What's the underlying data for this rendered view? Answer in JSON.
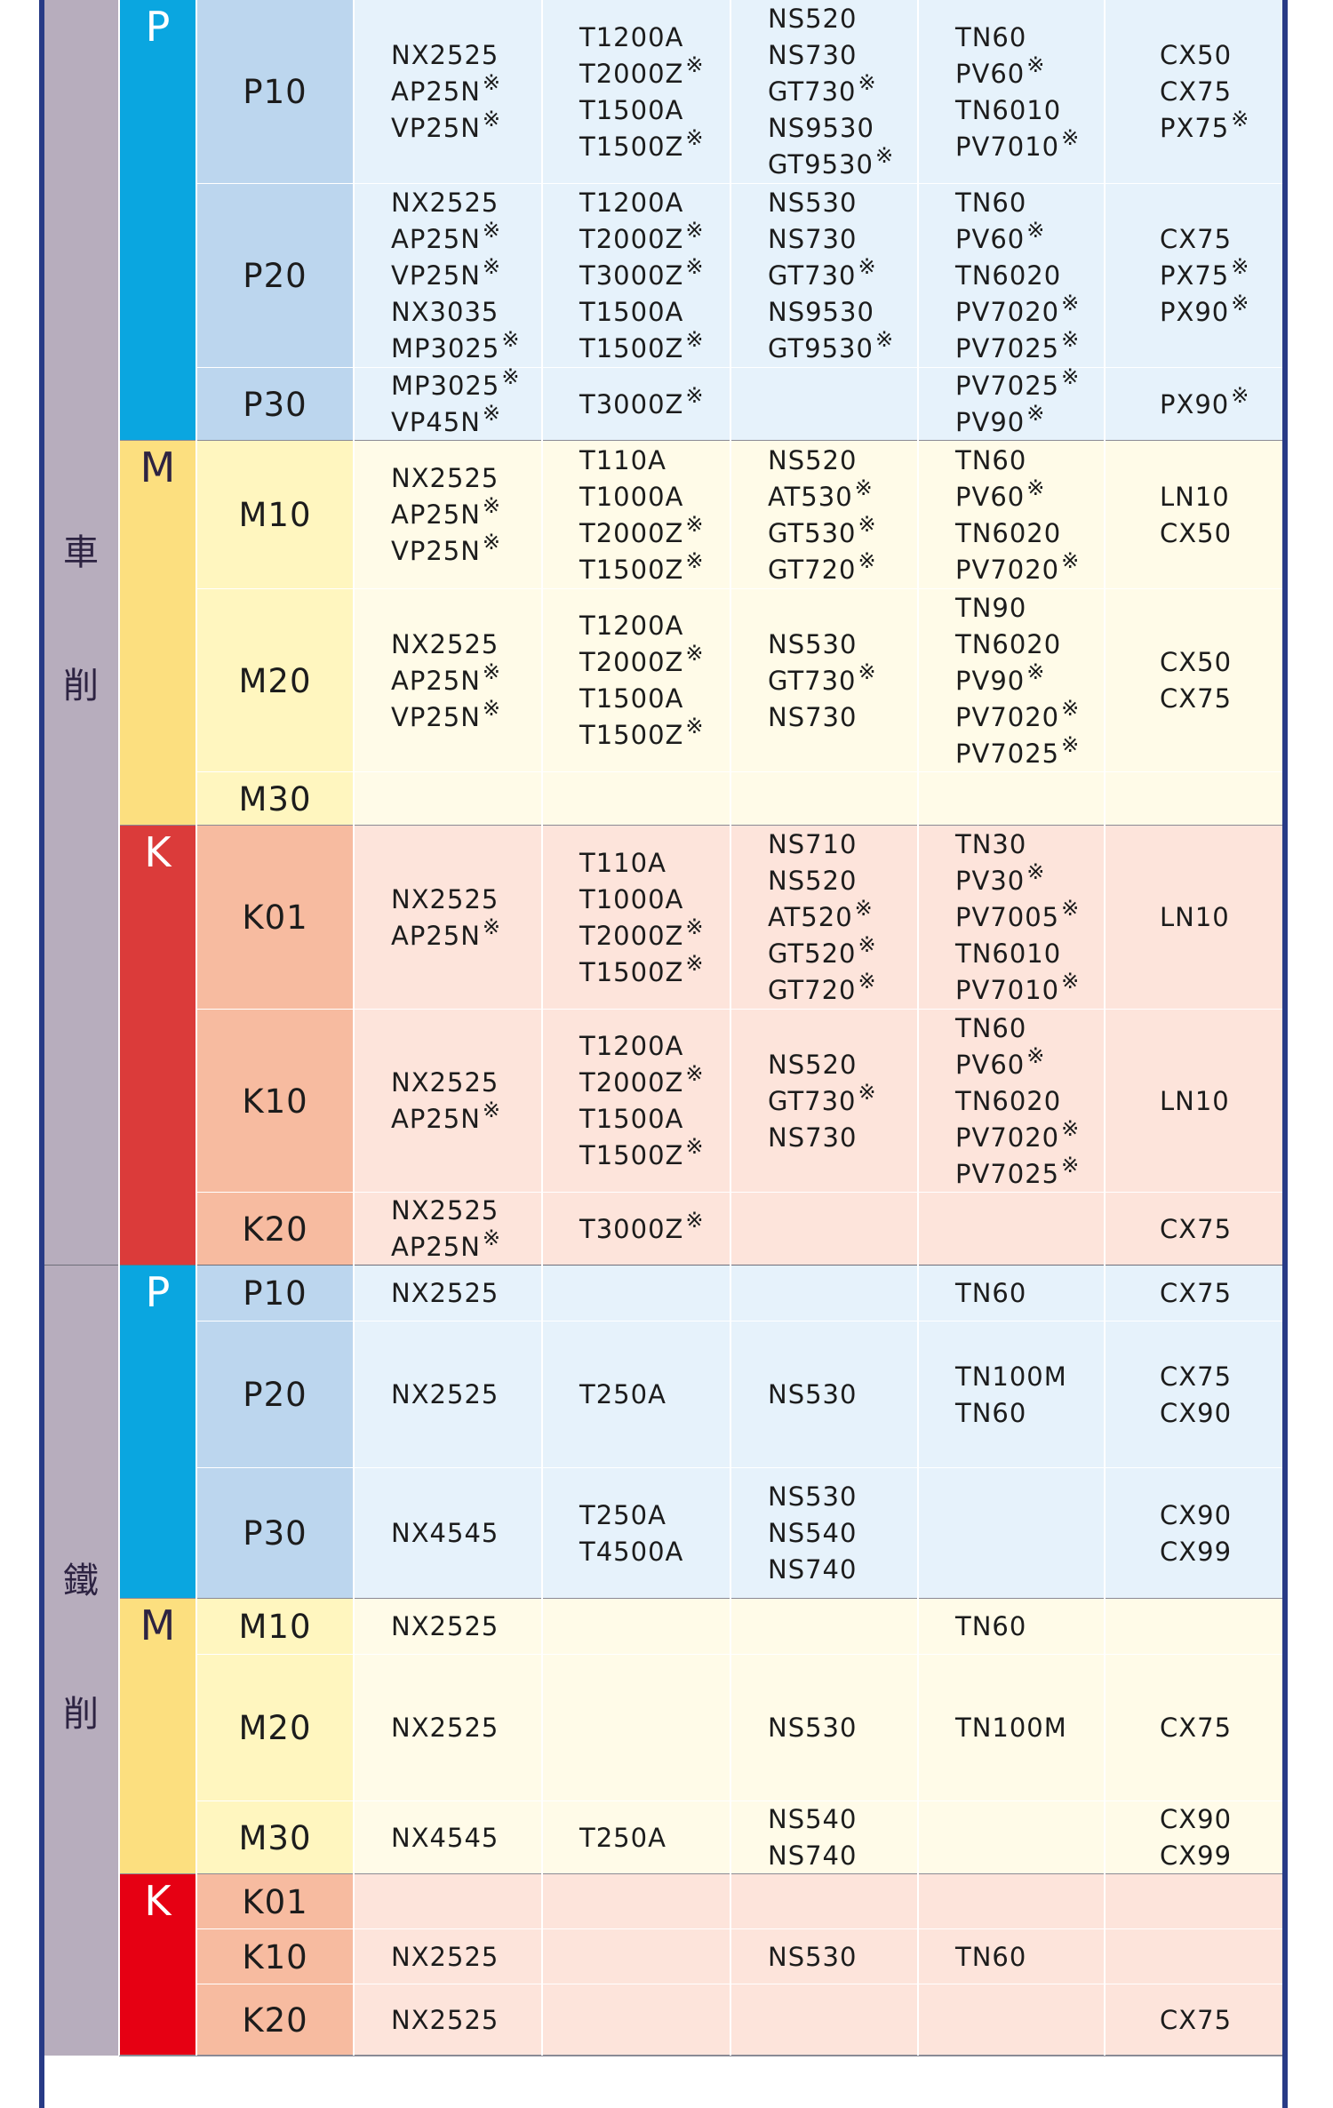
{
  "colors": {
    "frame": "#283b86",
    "operation_bg": "#b7adbd",
    "P": {
      "iso": "#0aa6e0",
      "grade": "#bcd6ee",
      "cell": "#e6f2fb"
    },
    "M": {
      "iso": "#fcdf7f",
      "grade": "#fff6bf",
      "cell": "#fffbe8"
    },
    "K_turning": {
      "iso": "#db3b3a",
      "grade": "#f7bba0",
      "cell": "#fde4db"
    },
    "K_milling": {
      "iso": "#e60013",
      "grade": "#f7bba0",
      "cell": "#fde4db"
    }
  },
  "note_mark": "※",
  "sections": [
    {
      "name": "turning",
      "label_chars": [
        "車",
        "削"
      ],
      "groups": [
        {
          "iso": "P",
          "theme": "P",
          "rows": [
            {
              "grade": "P10",
              "cells": [
                [
                  {
                    "t": "NX2525"
                  },
                  {
                    "t": "AP25N",
                    "n": true
                  },
                  {
                    "t": "VP25N",
                    "n": true
                  }
                ],
                [
                  {
                    "t": "T1200A"
                  },
                  {
                    "t": "T2000Z",
                    "n": true
                  },
                  {
                    "t": "T1500A"
                  },
                  {
                    "t": "T1500Z",
                    "n": true
                  }
                ],
                [
                  {
                    "t": "NS520"
                  },
                  {
                    "t": "NS730"
                  },
                  {
                    "t": "GT730",
                    "n": true
                  },
                  {
                    "t": "NS9530"
                  },
                  {
                    "t": "GT9530",
                    "n": true
                  }
                ],
                [
                  {
                    "t": "TN60"
                  },
                  {
                    "t": "PV60",
                    "n": true
                  },
                  {
                    "t": "TN6010"
                  },
                  {
                    "t": "PV7010",
                    "n": true
                  }
                ],
                [
                  {
                    "t": "CX50"
                  },
                  {
                    "t": "CX75"
                  },
                  {
                    "t": "PX75",
                    "n": true
                  }
                ]
              ]
            },
            {
              "grade": "P20",
              "cells": [
                [
                  {
                    "t": "NX2525"
                  },
                  {
                    "t": "AP25N",
                    "n": true
                  },
                  {
                    "t": "VP25N",
                    "n": true
                  },
                  {
                    "t": "NX3035"
                  },
                  {
                    "t": "MP3025",
                    "n": true
                  }
                ],
                [
                  {
                    "t": "T1200A"
                  },
                  {
                    "t": "T2000Z",
                    "n": true
                  },
                  {
                    "t": "T3000Z",
                    "n": true
                  },
                  {
                    "t": "T1500A"
                  },
                  {
                    "t": "T1500Z",
                    "n": true
                  }
                ],
                [
                  {
                    "t": "NS530"
                  },
                  {
                    "t": "NS730"
                  },
                  {
                    "t": "GT730",
                    "n": true
                  },
                  {
                    "t": "NS9530"
                  },
                  {
                    "t": "GT9530",
                    "n": true
                  }
                ],
                [
                  {
                    "t": "TN60"
                  },
                  {
                    "t": "PV60",
                    "n": true
                  },
                  {
                    "t": "TN6020"
                  },
                  {
                    "t": "PV7020",
                    "n": true
                  },
                  {
                    "t": "PV7025",
                    "n": true
                  }
                ],
                [
                  {
                    "t": "CX75"
                  },
                  {
                    "t": "PX75",
                    "n": true
                  },
                  {
                    "t": "PX90",
                    "n": true
                  }
                ]
              ]
            },
            {
              "grade": "P30",
              "cells": [
                [
                  {
                    "t": "MP3025",
                    "n": true
                  },
                  {
                    "t": "VP45N",
                    "n": true
                  }
                ],
                [
                  {
                    "t": "T3000Z",
                    "n": true
                  }
                ],
                [],
                [
                  {
                    "t": "PV7025",
                    "n": true
                  },
                  {
                    "t": "PV90",
                    "n": true
                  }
                ],
                [
                  {
                    "t": "PX90",
                    "n": true
                  }
                ]
              ]
            }
          ]
        },
        {
          "iso": "M",
          "theme": "M",
          "rows": [
            {
              "grade": "M10",
              "cells": [
                [
                  {
                    "t": "NX2525"
                  },
                  {
                    "t": "AP25N",
                    "n": true
                  },
                  {
                    "t": "VP25N",
                    "n": true
                  }
                ],
                [
                  {
                    "t": "T110A"
                  },
                  {
                    "t": "T1000A"
                  },
                  {
                    "t": "T2000Z",
                    "n": true
                  },
                  {
                    "t": "T1500Z",
                    "n": true
                  }
                ],
                [
                  {
                    "t": "NS520"
                  },
                  {
                    "t": "AT530",
                    "n": true
                  },
                  {
                    "t": "GT530",
                    "n": true
                  },
                  {
                    "t": "GT720",
                    "n": true
                  }
                ],
                [
                  {
                    "t": "TN60"
                  },
                  {
                    "t": "PV60",
                    "n": true
                  },
                  {
                    "t": "TN6020"
                  },
                  {
                    "t": "PV7020",
                    "n": true
                  }
                ],
                [
                  {
                    "t": "LN10"
                  },
                  {
                    "t": "CX50"
                  }
                ]
              ]
            },
            {
              "grade": "M20",
              "cells": [
                [
                  {
                    "t": "NX2525"
                  },
                  {
                    "t": "AP25N",
                    "n": true
                  },
                  {
                    "t": "VP25N",
                    "n": true
                  }
                ],
                [
                  {
                    "t": "T1200A"
                  },
                  {
                    "t": "T2000Z",
                    "n": true
                  },
                  {
                    "t": "T1500A"
                  },
                  {
                    "t": "T1500Z",
                    "n": true
                  }
                ],
                [
                  {
                    "t": "NS530"
                  },
                  {
                    "t": "GT730",
                    "n": true
                  },
                  {
                    "t": "NS730"
                  }
                ],
                [
                  {
                    "t": "TN90"
                  },
                  {
                    "t": "TN6020"
                  },
                  {
                    "t": "PV90",
                    "n": true
                  },
                  {
                    "t": "PV7020",
                    "n": true
                  },
                  {
                    "t": "PV7025",
                    "n": true
                  }
                ],
                [
                  {
                    "t": "CX50"
                  },
                  {
                    "t": "CX75"
                  }
                ]
              ]
            },
            {
              "grade": "M30",
              "cells": [
                [],
                [],
                [],
                [],
                []
              ]
            }
          ]
        },
        {
          "iso": "K",
          "theme": "K_turning",
          "rows": [
            {
              "grade": "K01",
              "cells": [
                [
                  {
                    "t": "NX2525"
                  },
                  {
                    "t": "AP25N",
                    "n": true
                  }
                ],
                [
                  {
                    "t": "T110A"
                  },
                  {
                    "t": "T1000A"
                  },
                  {
                    "t": "T2000Z",
                    "n": true
                  },
                  {
                    "t": "T1500Z",
                    "n": true
                  }
                ],
                [
                  {
                    "t": "NS710"
                  },
                  {
                    "t": "NS520"
                  },
                  {
                    "t": "AT520",
                    "n": true
                  },
                  {
                    "t": "GT520",
                    "n": true
                  },
                  {
                    "t": "GT720",
                    "n": true
                  }
                ],
                [
                  {
                    "t": "TN30"
                  },
                  {
                    "t": "PV30",
                    "n": true
                  },
                  {
                    "t": "PV7005",
                    "n": true
                  },
                  {
                    "t": "TN6010"
                  },
                  {
                    "t": "PV7010",
                    "n": true
                  }
                ],
                [
                  {
                    "t": "LN10"
                  }
                ]
              ]
            },
            {
              "grade": "K10",
              "cells": [
                [
                  {
                    "t": "NX2525"
                  },
                  {
                    "t": "AP25N",
                    "n": true
                  }
                ],
                [
                  {
                    "t": "T1200A"
                  },
                  {
                    "t": "T2000Z",
                    "n": true
                  },
                  {
                    "t": "T1500A"
                  },
                  {
                    "t": "T1500Z",
                    "n": true
                  }
                ],
                [
                  {
                    "t": "NS520"
                  },
                  {
                    "t": "GT730",
                    "n": true
                  },
                  {
                    "t": "NS730"
                  }
                ],
                [
                  {
                    "t": "TN60"
                  },
                  {
                    "t": "PV60",
                    "n": true
                  },
                  {
                    "t": "TN6020"
                  },
                  {
                    "t": "PV7020",
                    "n": true
                  },
                  {
                    "t": "PV7025",
                    "n": true
                  }
                ],
                [
                  {
                    "t": "LN10"
                  }
                ]
              ]
            },
            {
              "grade": "K20",
              "cells": [
                [
                  {
                    "t": "NX2525"
                  },
                  {
                    "t": "AP25N",
                    "n": true
                  }
                ],
                [
                  {
                    "t": "T3000Z",
                    "n": true
                  }
                ],
                [],
                [],
                [
                  {
                    "t": "CX75"
                  }
                ]
              ]
            }
          ]
        }
      ]
    },
    {
      "name": "milling",
      "label_chars": [
        "鐵",
        "削"
      ],
      "groups": [
        {
          "iso": "P",
          "theme": "P",
          "rows": [
            {
              "grade": "P10",
              "cells": [
                [
                  {
                    "t": "NX2525"
                  }
                ],
                [],
                [],
                [
                  {
                    "t": "TN60"
                  }
                ],
                [
                  {
                    "t": "CX75"
                  }
                ]
              ]
            },
            {
              "grade": "P20",
              "cells": [
                [
                  {
                    "t": "NX2525"
                  }
                ],
                [
                  {
                    "t": "T250A"
                  }
                ],
                [
                  {
                    "t": "NS530"
                  }
                ],
                [
                  {
                    "t": "TN100M"
                  },
                  {
                    "t": "TN60"
                  }
                ],
                [
                  {
                    "t": "CX75"
                  },
                  {
                    "t": "CX90"
                  }
                ]
              ]
            },
            {
              "grade": "P30",
              "cells": [
                [
                  {
                    "t": "NX4545"
                  }
                ],
                [
                  {
                    "t": "T250A"
                  },
                  {
                    "t": "T4500A"
                  }
                ],
                [
                  {
                    "t": "NS530"
                  },
                  {
                    "t": "NS540"
                  },
                  {
                    "t": "NS740"
                  }
                ],
                [],
                [
                  {
                    "t": "CX90"
                  },
                  {
                    "t": "CX99"
                  }
                ]
              ]
            }
          ]
        },
        {
          "iso": "M",
          "theme": "M",
          "rows": [
            {
              "grade": "M10",
              "cells": [
                [
                  {
                    "t": "NX2525"
                  }
                ],
                [],
                [],
                [
                  {
                    "t": "TN60"
                  }
                ],
                []
              ]
            },
            {
              "grade": "M20",
              "cells": [
                [
                  {
                    "t": "NX2525"
                  }
                ],
                [],
                [
                  {
                    "t": "NS530"
                  }
                ],
                [
                  {
                    "t": "TN100M"
                  }
                ],
                [
                  {
                    "t": "CX75"
                  }
                ]
              ]
            },
            {
              "grade": "M30",
              "cells": [
                [
                  {
                    "t": "NX4545"
                  }
                ],
                [
                  {
                    "t": "T250A"
                  }
                ],
                [
                  {
                    "t": "NS540"
                  },
                  {
                    "t": "NS740"
                  }
                ],
                [],
                [
                  {
                    "t": "CX90"
                  },
                  {
                    "t": "CX99"
                  }
                ]
              ]
            }
          ]
        },
        {
          "iso": "K",
          "theme": "K_milling",
          "rows": [
            {
              "grade": "K01",
              "cells": [
                [],
                [],
                [],
                [],
                []
              ]
            },
            {
              "grade": "K10",
              "cells": [
                [
                  {
                    "t": "NX2525"
                  }
                ],
                [],
                [
                  {
                    "t": "NS530"
                  }
                ],
                [
                  {
                    "t": "TN60"
                  }
                ],
                []
              ]
            },
            {
              "grade": "K20",
              "cells": [
                [
                  {
                    "t": "NX2525"
                  }
                ],
                [],
                [],
                [],
                [
                  {
                    "t": "CX75"
                  }
                ]
              ]
            }
          ]
        }
      ]
    }
  ]
}
